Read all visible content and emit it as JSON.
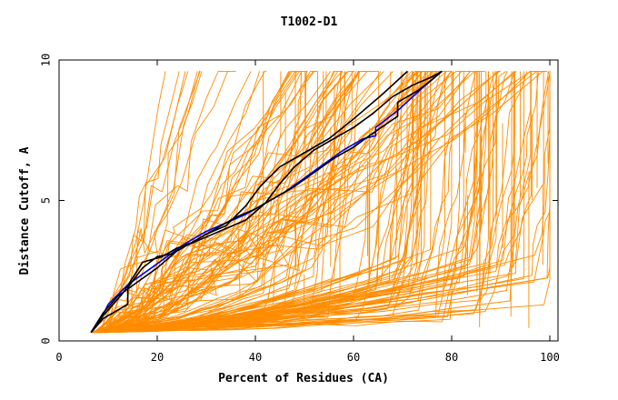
{
  "chart_data": {
    "type": "line",
    "title": "T1002-D1",
    "xlabel": "Percent of Residues (CA)",
    "ylabel": "Distance Cutoff, A",
    "xlim": [
      0,
      100
    ],
    "ylim": [
      0,
      10
    ],
    "x_ticks": [
      "0",
      "20",
      "40",
      "60",
      "80",
      "100"
    ],
    "y_ticks": [
      "0",
      "5",
      "10"
    ],
    "x_tick_values": [
      0,
      20,
      40,
      60,
      80,
      100
    ],
    "y_tick_values": [
      0,
      5,
      10
    ],
    "grid": false,
    "legend": "none",
    "colors": {
      "orange": "#ff8c00",
      "blue": "#0000ff",
      "black": "#000000"
    },
    "highlight_series": [
      {
        "name": "blue-model",
        "color": "#0000ff",
        "x": [
          6.5,
          8,
          10,
          14,
          18,
          22,
          26,
          30,
          34,
          38,
          42,
          46,
          50,
          54,
          58,
          62,
          64.5,
          64.5,
          69,
          74,
          78
        ],
        "y": [
          0.3,
          0.6,
          1.3,
          2.0,
          2.5,
          3.0,
          3.5,
          3.9,
          4.2,
          4.5,
          4.9,
          5.3,
          5.8,
          6.3,
          6.8,
          7.2,
          7.3,
          7.6,
          8.2,
          9.0,
          9.6
        ]
      },
      {
        "name": "black-model-1",
        "color": "#000000",
        "x": [
          6.5,
          9,
          12,
          16,
          20,
          24,
          28,
          32,
          36,
          40,
          44,
          48,
          52,
          56,
          60,
          64,
          69,
          69,
          73,
          76,
          78
        ],
        "y": [
          0.3,
          1.0,
          1.6,
          2.1,
          2.6,
          3.2,
          3.6,
          4.0,
          4.4,
          4.7,
          5.1,
          5.5,
          6.0,
          6.5,
          6.9,
          7.4,
          8.0,
          8.5,
          8.9,
          9.3,
          9.6
        ]
      },
      {
        "name": "black-model-2",
        "color": "#000000",
        "x": [
          6.5,
          9,
          14,
          14,
          17,
          20,
          23,
          26,
          30,
          34,
          38,
          42,
          45,
          48,
          52,
          56,
          60,
          64,
          68,
          72,
          76,
          78
        ],
        "y": [
          0.3,
          0.8,
          1.3,
          1.9,
          2.6,
          3.0,
          3.1,
          3.4,
          3.7,
          4.0,
          4.3,
          4.9,
          5.6,
          6.2,
          6.8,
          7.2,
          7.6,
          8.1,
          8.7,
          9.1,
          9.4,
          9.6
        ]
      },
      {
        "name": "black-model-3",
        "color": "#000000",
        "x": [
          6.5,
          9,
          13,
          17,
          21,
          24,
          27,
          30,
          34,
          38,
          41,
          45,
          50,
          55,
          60,
          66,
          71
        ],
        "y": [
          0.3,
          0.9,
          1.7,
          2.8,
          3.0,
          3.3,
          3.5,
          3.8,
          4.1,
          4.8,
          5.5,
          6.2,
          6.7,
          7.2,
          7.9,
          8.8,
          9.6
        ]
      }
    ],
    "orange_series_note": "Approximately 150 model curves in orange; all start near y=0.3 and rise to y=9.6 at various x positions between 18 and 100 percent."
  }
}
